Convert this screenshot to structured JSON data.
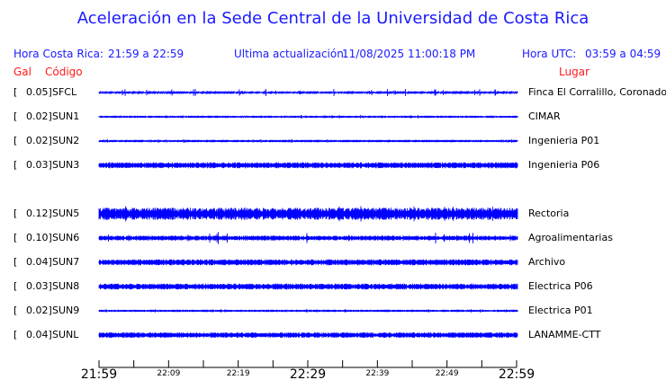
{
  "header": {
    "title": "Aceleración en la Sede Central de la Universidad de Costa Rica",
    "local_time_label": "Hora Costa Rica:",
    "local_time_range": "21:59 a 22:59",
    "last_update_label": "Ultima actualización:",
    "last_update_value": "11/08/2025 11:00:18 PM",
    "utc_label": "Hora UTC:",
    "utc_range": "03:59 a 04:59"
  },
  "columns": {
    "gal": "Gal",
    "code": "Código",
    "place": "Lugar"
  },
  "colors": {
    "trace": "#0000ff",
    "header": "#1a1aff",
    "column_header": "#ff1a1a"
  },
  "chart_data": {
    "type": "line",
    "xlabel": "",
    "ylabel": "",
    "x_ticks": [
      "21:59",
      "22:09",
      "22:19",
      "22:29",
      "22:39",
      "22:49",
      "22:59"
    ],
    "series": [
      {
        "gal": "0.05",
        "code": "SFCL",
        "place": "Finca El Corralillo, Coronado"
      },
      {
        "gal": "0.02",
        "code": "SUN1",
        "place": "CIMAR"
      },
      {
        "gal": "0.02",
        "code": "SUN2",
        "place": "Ingenieria P01"
      },
      {
        "gal": "0.03",
        "code": "SUN3",
        "place": "Ingenieria P06"
      },
      {
        "gal": "0.12",
        "code": "SUN5",
        "place": "Rectoria"
      },
      {
        "gal": "0.10",
        "code": "SUN6",
        "place": "Agroalimentarias"
      },
      {
        "gal": "0.04",
        "code": "SUN7",
        "place": "Archivo"
      },
      {
        "gal": "0.03",
        "code": "SUN8",
        "place": "Electrica P06"
      },
      {
        "gal": "0.02",
        "code": "SUN9",
        "place": "Electrica P01"
      },
      {
        "gal": "0.04",
        "code": "SUNL",
        "place": "LANAMME-CTT"
      }
    ]
  }
}
